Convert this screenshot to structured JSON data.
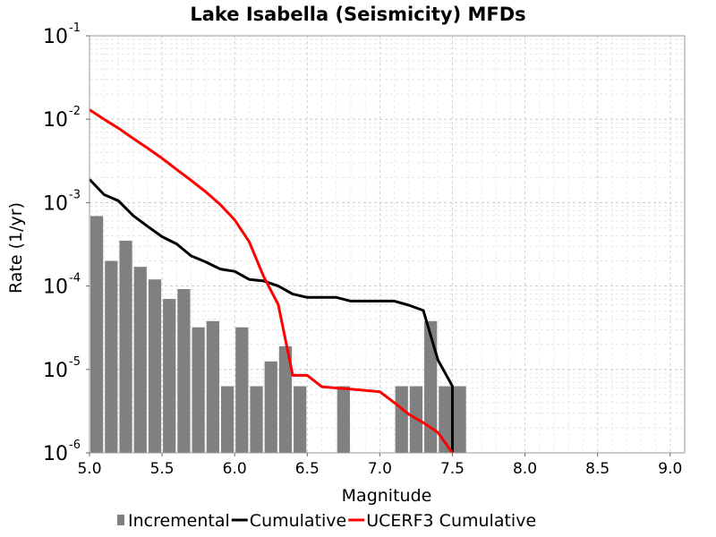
{
  "chart_data": {
    "type": "bar+line",
    "title": "Lake Isabella (Seismicity) MFDs",
    "xlabel": "Magnitude",
    "ylabel": "Rate (1/yr)",
    "xlim": [
      5.0,
      9.1
    ],
    "ylim": [
      1e-06,
      0.1
    ],
    "yscale": "log",
    "grid": true,
    "legend_position": "bottom",
    "x_ticks": [
      "5.0",
      "5.5",
      "6.0",
      "6.5",
      "7.0",
      "7.5",
      "8.0",
      "8.5",
      "9.0"
    ],
    "y_ticks": [
      {
        "base": "10",
        "exp": "-6",
        "value": 1e-06
      },
      {
        "base": "10",
        "exp": "-5",
        "value": 1e-05
      },
      {
        "base": "10",
        "exp": "-4",
        "value": 0.0001
      },
      {
        "base": "10",
        "exp": "-3",
        "value": 0.001
      },
      {
        "base": "10",
        "exp": "-2",
        "value": 0.01
      },
      {
        "base": "10",
        "exp": "-1",
        "value": 0.1
      }
    ],
    "series": [
      {
        "name": "Incremental",
        "kind": "bar",
        "color": "#808080",
        "bin_width": 0.1,
        "x": [
          5.05,
          5.15,
          5.25,
          5.35,
          5.45,
          5.55,
          5.65,
          5.75,
          5.85,
          5.95,
          6.05,
          6.15,
          6.25,
          6.35,
          6.45,
          6.75,
          7.15,
          7.25,
          7.35,
          7.45,
          7.55
        ],
        "y": [
          0.00069,
          0.0002,
          0.00035,
          0.00017,
          0.00012,
          7e-05,
          9.2e-05,
          3.2e-05,
          3.8e-05,
          6.3e-06,
          3.2e-05,
          6.3e-06,
          1.25e-05,
          1.9e-05,
          6.3e-06,
          6.3e-06,
          6.3e-06,
          6.3e-06,
          3.8e-05,
          6.3e-06,
          6.3e-06
        ]
      },
      {
        "name": "Cumulative",
        "kind": "line",
        "color": "#000000",
        "x": [
          5.0,
          5.1,
          5.2,
          5.3,
          5.4,
          5.5,
          5.6,
          5.7,
          5.8,
          5.9,
          6.0,
          6.1,
          6.2,
          6.3,
          6.4,
          6.5,
          6.6,
          6.7,
          6.8,
          6.9,
          7.0,
          7.1,
          7.2,
          7.3,
          7.4,
          7.5,
          7.5
        ],
        "y": [
          0.0019,
          0.00125,
          0.00105,
          0.0007,
          0.00052,
          0.00039,
          0.00032,
          0.00023,
          0.000195,
          0.00016,
          0.00015,
          0.00012,
          0.000115,
          0.0001,
          8e-05,
          7.3e-05,
          7.3e-05,
          7.3e-05,
          6.6e-05,
          6.6e-05,
          6.6e-05,
          6.6e-05,
          5.9e-05,
          5.1e-05,
          1.3e-05,
          6.3e-06,
          1e-06
        ]
      },
      {
        "name": "UCERF3 Cumulative",
        "kind": "line",
        "color": "#ff0000",
        "x": [
          5.0,
          5.1,
          5.2,
          5.3,
          5.4,
          5.5,
          5.6,
          5.7,
          5.8,
          5.9,
          6.0,
          6.1,
          6.2,
          6.3,
          6.4,
          6.5,
          6.6,
          6.7,
          6.8,
          6.9,
          7.0,
          7.1,
          7.2,
          7.3,
          7.4,
          7.5
        ],
        "y": [
          0.013,
          0.01,
          0.0078,
          0.0059,
          0.0045,
          0.0034,
          0.0025,
          0.00185,
          0.00135,
          0.00095,
          0.00062,
          0.00034,
          0.00013,
          6e-05,
          8.5e-06,
          8.5e-06,
          6.2e-06,
          6e-06,
          5.8e-06,
          5.6e-06,
          5.4e-06,
          4e-06,
          2.9e-06,
          2.3e-06,
          1.75e-06,
          1e-06
        ]
      }
    ]
  }
}
